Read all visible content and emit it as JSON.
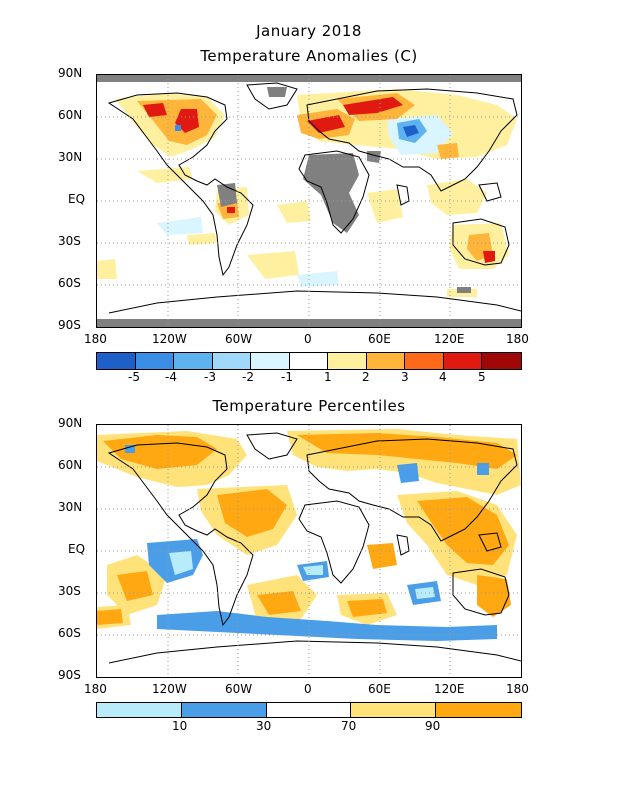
{
  "header": {
    "title_line1": "January 2018",
    "title_line2": "Temperature Anomalies (C)"
  },
  "lower_title": "Temperature Percentiles",
  "lat_labels": [
    "90N",
    "60N",
    "30N",
    "EQ",
    "30S",
    "60S",
    "90S"
  ],
  "lon_labels": [
    "180",
    "120W",
    "60W",
    "0",
    "60E",
    "120E",
    "180"
  ],
  "anomaly_legend": {
    "colors": [
      "#1f5fc8",
      "#3a8ee6",
      "#5fb2f0",
      "#9fd8f8",
      "#d9f5ff",
      "#ffffff",
      "#fff0a0",
      "#ffb43a",
      "#ff6a1a",
      "#e01a10",
      "#a00808"
    ],
    "labels": [
      "-5",
      "-4",
      "-3",
      "-2",
      "-1",
      "1",
      "2",
      "3",
      "4",
      "5"
    ]
  },
  "percentile_legend": {
    "colors": [
      "#b8ecfa",
      "#4a9ee8",
      "#ffffff",
      "#ffe27a",
      "#ffa812"
    ],
    "labels": [
      "10",
      "30",
      "70",
      "90"
    ]
  },
  "colors": {
    "missing_data": "#808080",
    "land_outline": "#000000",
    "grid": "#9a9a9a"
  }
}
